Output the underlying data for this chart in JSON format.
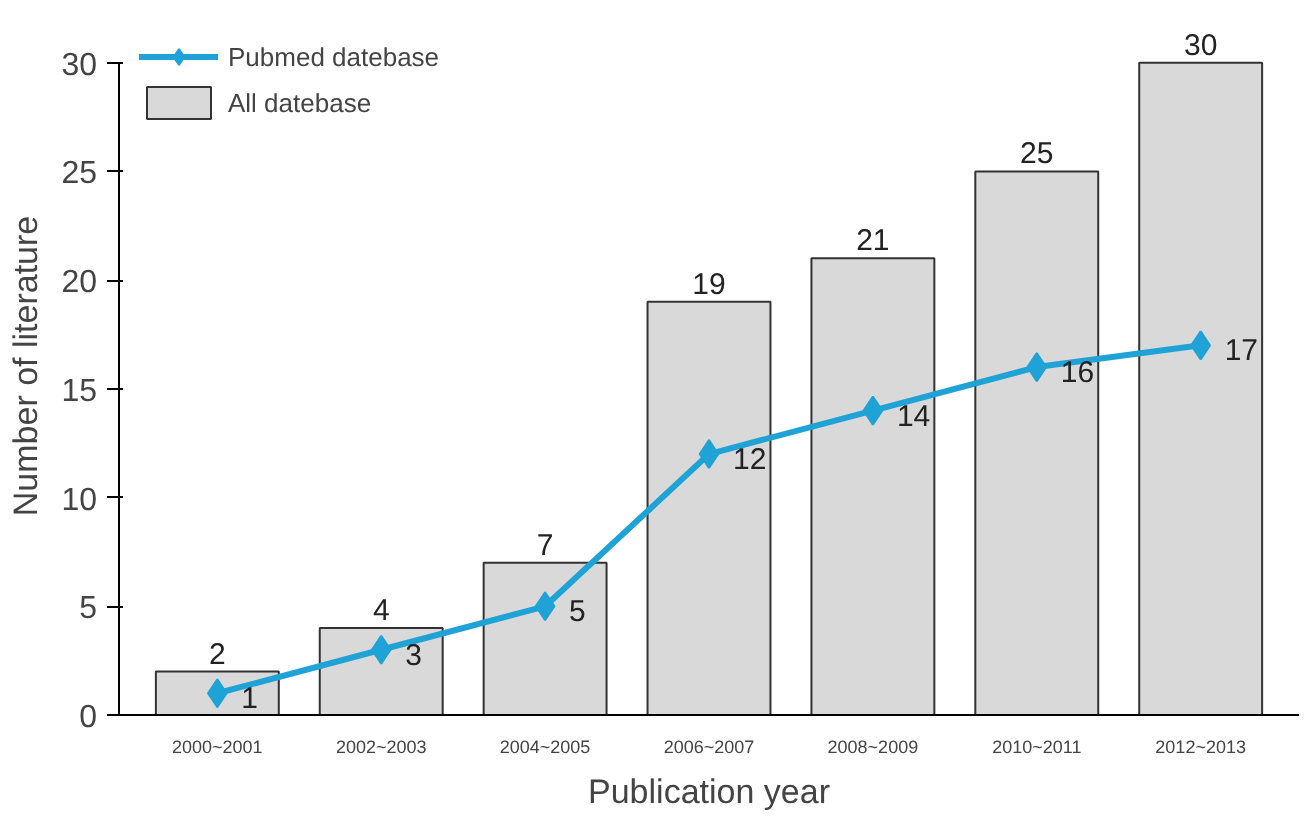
{
  "chart_data": {
    "type": "bar",
    "xlabel": "Publication year",
    "ylabel": "Number of literature",
    "categories": [
      "2000~2001",
      "2002~2003",
      "2004~2005",
      "2006~2007",
      "2008~2009",
      "2010~2011",
      "2012~2013"
    ],
    "series": [
      {
        "name": "Pubmed datebase",
        "type": "line",
        "color": "#1fa3d6",
        "values": [
          1,
          3,
          5,
          12,
          14,
          16,
          17
        ]
      },
      {
        "name": "All datebase",
        "color": "#d9d9d9",
        "values": [
          2,
          4,
          7,
          19,
          21,
          25,
          30
        ]
      }
    ],
    "data_labels": true,
    "ylim": [
      0,
      30
    ],
    "yticks": [
      0,
      5,
      10,
      15,
      20,
      25,
      30
    ],
    "grid": false,
    "legend": "top left",
    "marker": "diamond",
    "line_style": "solid"
  }
}
